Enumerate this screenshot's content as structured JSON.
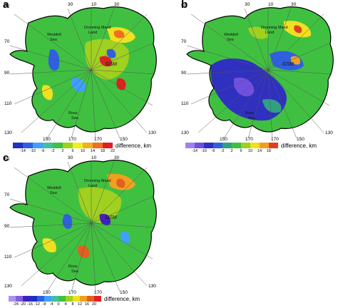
{
  "panels": [
    {
      "label": "a",
      "lon_labels": {
        "top_left": "30",
        "top_mid": "10",
        "top_right": "30",
        "left_1": "50",
        "left_2": "70",
        "left_3": "90",
        "left_4": "110",
        "left_5": "130",
        "bottom_1": "150",
        "bottom_2": "170",
        "bottom_3": "170",
        "bottom_4": "150",
        "right_5": "130"
      },
      "places": {
        "weddell": "Weddell",
        "weddell2": "Sea",
        "dml": "Dronning Maud",
        "dml2": "Land",
        "ross": "Ross",
        "ross2": "Sea",
        "gsm": "GSM"
      },
      "legend": {
        "title": "difference, km",
        "ticks": [
          "-14",
          "-10",
          "-6",
          "-2",
          "2",
          "6",
          "10",
          "14",
          "18",
          "22"
        ],
        "colors": [
          "#2030c0",
          "#3060e0",
          "#40a0ff",
          "#40c0a0",
          "#40c040",
          "#a0d020",
          "#f0f020",
          "#f0b020",
          "#f07020",
          "#e02020"
        ]
      }
    },
    {
      "label": "b",
      "lon_labels": {
        "top_left": "30",
        "top_mid": "10",
        "top_right": "30",
        "left_1": "50",
        "left_2": "70",
        "left_3": "90",
        "left_4": "110",
        "left_5": "130",
        "bottom_1": "150",
        "bottom_2": "170",
        "bottom_3": "170",
        "bottom_4": "150",
        "right_5": "130"
      },
      "places": {
        "weddell": "Weddell",
        "weddell2": "Sea",
        "dml": "Dronning Maud",
        "dml2": "Land",
        "ross": "Ross",
        "ross2": "Sea",
        "gsm": "GSM"
      },
      "legend": {
        "title": "difference, km",
        "ticks": [
          "-14",
          "-10",
          "-6",
          "-2",
          "2",
          "6",
          "10",
          "14",
          "18"
        ],
        "colors": [
          "#a080f0",
          "#7050e0",
          "#3030c0",
          "#3060e0",
          "#30a080",
          "#40c040",
          "#a0d020",
          "#f0e020",
          "#f0a020",
          "#e04020"
        ]
      }
    },
    {
      "label": "c",
      "lon_labels": {
        "top_left": "30",
        "top_mid": "10",
        "top_right": "30",
        "left_1": "50",
        "left_2": "70",
        "left_3": "90",
        "left_4": "110",
        "left_5": "130",
        "bottom_1": "150",
        "bottom_2": "170",
        "bottom_3": "170",
        "bottom_4": "150",
        "right_5": "130"
      },
      "places": {
        "weddell": "Weddell",
        "weddell2": "Sea",
        "dml": "Dronning Maud",
        "dml2": "Land",
        "ross": "Ross",
        "ross2": "Sea",
        "gsm": "GSM"
      },
      "legend": {
        "title": "difference, km",
        "ticks": [
          "-24",
          "-20",
          "-16",
          "-12",
          "-8",
          "-4",
          "0",
          "4",
          "8",
          "12",
          "16",
          "20"
        ],
        "colors": [
          "#b090f0",
          "#8060e0",
          "#4020c0",
          "#2030c0",
          "#3060e0",
          "#40a0ff",
          "#40c0a0",
          "#40c040",
          "#a0d020",
          "#f0e020",
          "#f0a020",
          "#e06020",
          "#e02020"
        ]
      }
    }
  ]
}
